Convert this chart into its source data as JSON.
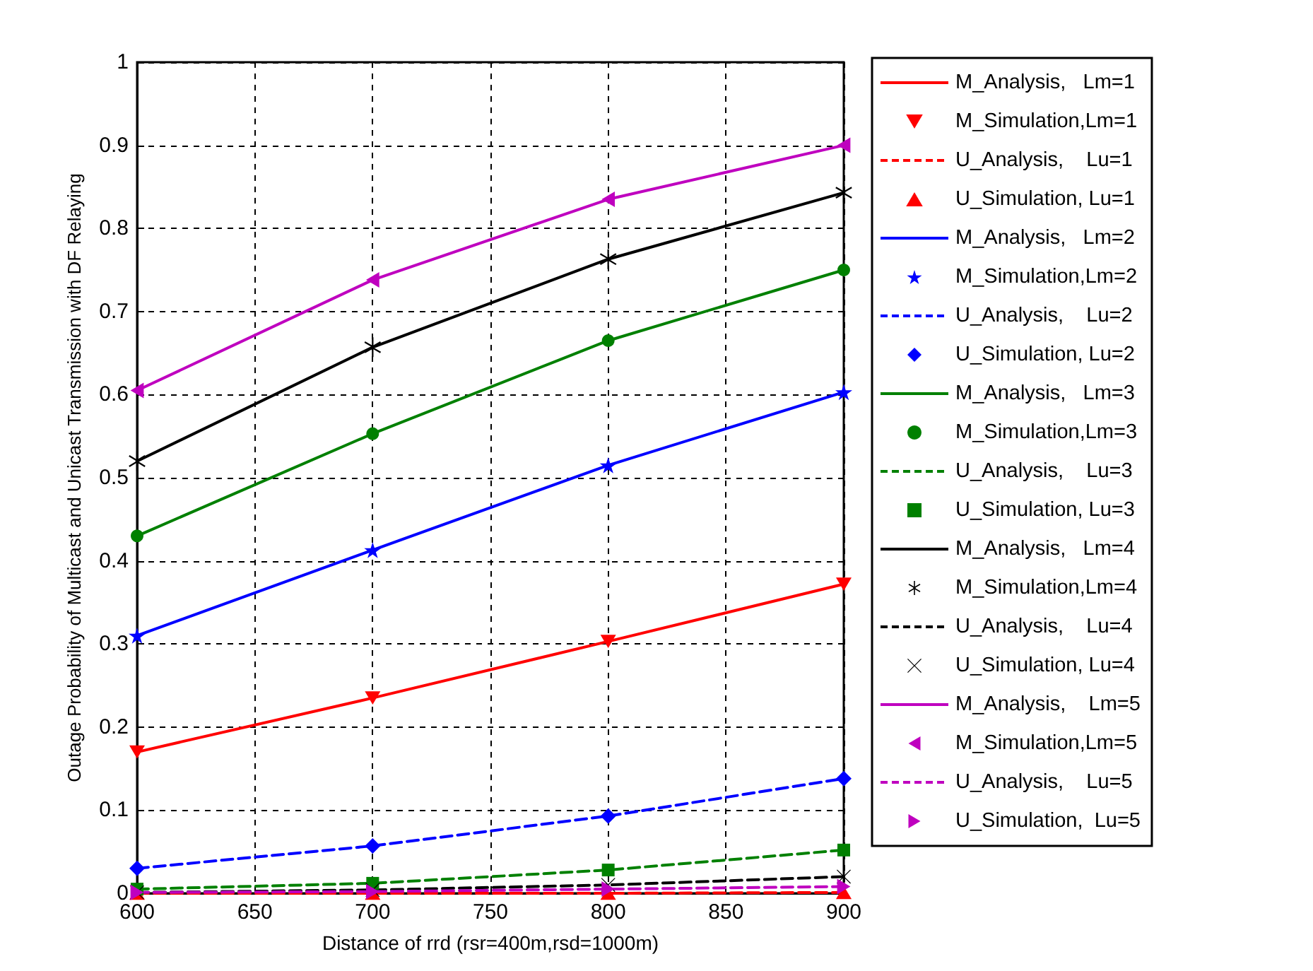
{
  "chart_data": {
    "type": "line",
    "xlabel": "Distance of rrd (rsr=400m,rsd=1000m)",
    "ylabel": "Outage Probability of Multicast and Unicast Transmission with DF Relaying",
    "x": [
      600,
      700,
      800,
      900
    ],
    "xlim": [
      600,
      900
    ],
    "xticks": [
      600,
      650,
      700,
      750,
      800,
      850,
      900
    ],
    "ylim": [
      0,
      1
    ],
    "yticks": [
      0,
      0.1,
      0.2,
      0.3,
      0.4,
      0.5,
      0.6,
      0.7,
      0.8,
      0.9,
      1
    ],
    "grid": true,
    "legend": "right",
    "series": [
      {
        "name": "M_Analysis,   Lm=1",
        "color": "#ff0000",
        "line_style": "solid",
        "marker": "none",
        "values": [
          0.17,
          0.235,
          0.303,
          0.372
        ]
      },
      {
        "name": "M_Simulation,Lm=1",
        "type": "scatter",
        "color": "#ff0000",
        "marker": "triangle-down",
        "values": [
          0.17,
          0.235,
          0.303,
          0.372
        ]
      },
      {
        "name": "U_Analysis,    Lu=1",
        "color": "#ff0000",
        "line_style": "dashed",
        "marker": "none",
        "values": [
          0,
          0,
          0,
          0.001
        ]
      },
      {
        "name": "U_Simulation, Lu=1",
        "type": "scatter",
        "color": "#ff0000",
        "marker": "triangle",
        "values": [
          0,
          0,
          0,
          0.001
        ]
      },
      {
        "name": "M_Analysis,   Lm=2",
        "color": "#0000ff",
        "line_style": "solid",
        "marker": "none",
        "values": [
          0.31,
          0.413,
          0.515,
          0.603
        ]
      },
      {
        "name": "M_Simulation,Lm=2",
        "type": "scatter",
        "color": "#0000ff",
        "marker": "star",
        "values": [
          0.31,
          0.413,
          0.515,
          0.603
        ]
      },
      {
        "name": "U_Analysis,    Lu=2",
        "color": "#0000ff",
        "line_style": "dashed",
        "marker": "none",
        "values": [
          0.03,
          0.057,
          0.093,
          0.138
        ]
      },
      {
        "name": "U_Simulation, Lu=2",
        "type": "scatter",
        "color": "#0000ff",
        "marker": "diamond",
        "values": [
          0.03,
          0.057,
          0.093,
          0.138
        ]
      },
      {
        "name": "M_Analysis,   Lm=3",
        "color": "#008000",
        "line_style": "solid",
        "marker": "none",
        "values": [
          0.43,
          0.553,
          0.665,
          0.75
        ]
      },
      {
        "name": "M_Simulation,Lm=3",
        "type": "scatter",
        "color": "#008000",
        "marker": "circle",
        "values": [
          0.43,
          0.553,
          0.665,
          0.75
        ]
      },
      {
        "name": "U_Analysis,    Lu=3",
        "color": "#008000",
        "line_style": "dashed",
        "marker": "none",
        "values": [
          0.005,
          0.012,
          0.028,
          0.052
        ]
      },
      {
        "name": "U_Simulation, Lu=3",
        "type": "scatter",
        "color": "#008000",
        "marker": "square",
        "values": [
          0.005,
          0.012,
          0.028,
          0.052
        ]
      },
      {
        "name": "M_Analysis,   Lm=4",
        "color": "#000000",
        "line_style": "solid",
        "marker": "none",
        "values": [
          0.52,
          0.657,
          0.763,
          0.843
        ]
      },
      {
        "name": "M_Simulation,Lm=4",
        "type": "scatter",
        "color": "#000000",
        "marker": "asterisk",
        "values": [
          0.52,
          0.657,
          0.763,
          0.843
        ]
      },
      {
        "name": "U_Analysis,    Lu=4",
        "color": "#000000",
        "line_style": "dashed",
        "marker": "none",
        "values": [
          0.001,
          0.004,
          0.01,
          0.02
        ]
      },
      {
        "name": "U_Simulation, Lu=4",
        "type": "scatter",
        "color": "#000000",
        "marker": "cross",
        "values": [
          0.001,
          0.004,
          0.01,
          0.02
        ]
      },
      {
        "name": "M_Analysis,    Lm=5",
        "color": "#bf00bf",
        "line_style": "solid",
        "marker": "none",
        "values": [
          0.605,
          0.738,
          0.835,
          0.9
        ]
      },
      {
        "name": "M_Simulation,Lm=5",
        "type": "scatter",
        "color": "#bf00bf",
        "marker": "triangle-left",
        "values": [
          0.605,
          0.738,
          0.835,
          0.9
        ]
      },
      {
        "name": "U_Analysis,    Lu=5",
        "color": "#bf00bf",
        "line_style": "dashed",
        "marker": "none",
        "values": [
          0.001,
          0.002,
          0.005,
          0.008
        ]
      },
      {
        "name": "U_Simulation,  Lu=5",
        "type": "scatter",
        "color": "#bf00bf",
        "marker": "triangle-right",
        "values": [
          0.001,
          0.002,
          0.005,
          0.008
        ]
      }
    ]
  }
}
